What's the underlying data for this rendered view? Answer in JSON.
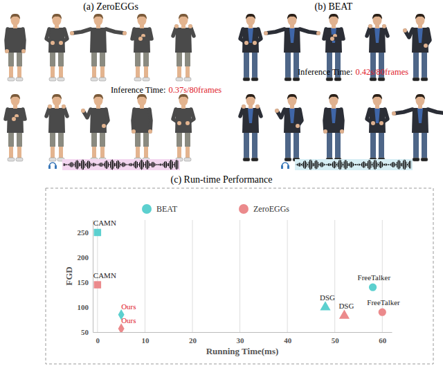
{
  "panels": [
    {
      "title": "(a) ZeroEGGs",
      "inference_label": "Inference Time:",
      "inference_value": "0.37s/80frames"
    },
    {
      "title": "(b) BEAT",
      "inference_label": "Inference Time:",
      "inference_value": "0.42s/80frames"
    }
  ],
  "chart_data": {
    "type": "scatter",
    "title": "(c) Run-time Performance",
    "x_label": "Running Time(ms)",
    "y_label": "FGD",
    "categories": [
      "CAMN",
      "Ours",
      "DSG",
      "FreeTalker"
    ],
    "series": [
      {
        "name": "BEAT",
        "color": "#5cd0cf",
        "x": [
          0,
          5,
          48,
          58
        ],
        "values": [
          250,
          85,
          100,
          140
        ]
      },
      {
        "name": "ZeroEGGs",
        "color": "#eb8a8c",
        "x": [
          0,
          5,
          52,
          60
        ],
        "values": [
          145,
          57,
          83,
          90
        ]
      }
    ],
    "xlim": [
      -1,
      62
    ],
    "xticks": [
      0,
      10,
      20,
      30,
      40,
      50,
      60
    ],
    "ylim": [
      50,
      275
    ],
    "yticks": [
      50,
      100,
      150,
      200,
      250
    ],
    "grid": true,
    "legend": "top"
  }
}
